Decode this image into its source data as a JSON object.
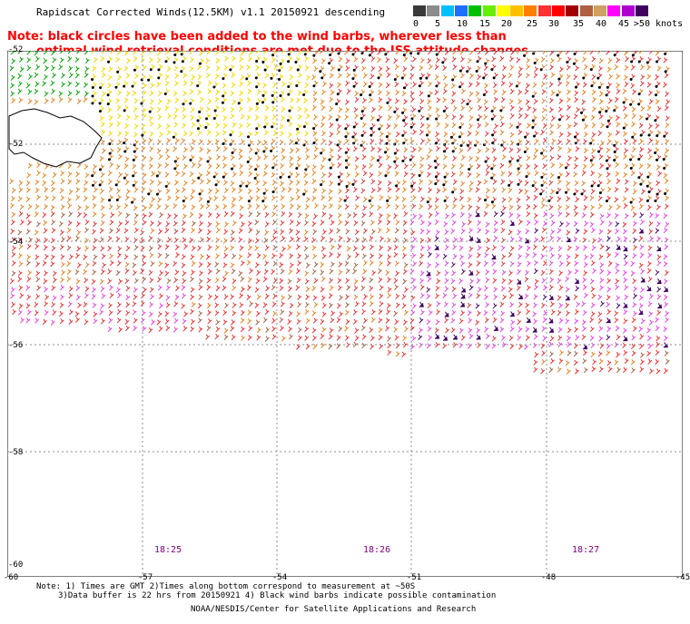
{
  "header": {
    "title": "Rapidscat Corrected Winds(12.5KM) v1.1 20150921 descending"
  },
  "legend": {
    "colors": [
      "#3a3a3a",
      "#8c8c8c",
      "#00bfff",
      "#1e6fff",
      "#00c000",
      "#66ee00",
      "#ffff00",
      "#ffc000",
      "#ff8000",
      "#ff3030",
      "#ff0000",
      "#a00000",
      "#b06040",
      "#d0a060",
      "#ff00ff",
      "#b000d0",
      "#400060"
    ],
    "labels": [
      "0",
      "5",
      "10",
      "15",
      "20",
      "25",
      "30",
      "35",
      "40",
      "45",
      ">50 knots"
    ]
  },
  "note": {
    "line1": "Note: black circles have been added to the wind barbs, wherever less than",
    "line2": "optimal wind retrieval conditions are met due to the ISS attitude changes."
  },
  "axes": {
    "x_labels": [
      "-60",
      "-57",
      "-54",
      "-51",
      "-48",
      "-45"
    ],
    "y_labels": [
      "-52",
      "-52",
      "-54",
      "-56",
      "-58",
      "-60"
    ]
  },
  "times": [
    "18:25",
    "18:26",
    "18:27"
  ],
  "footer": {
    "line1": "Note: 1) Times are GMT 2)Times along bottom correspond to measurement at ~50S",
    "line2": "3)Data buffer is 22 hrs from 20150921 4) Black wind barbs indicate possible contamination",
    "line3": "NOAA/NESDIS/Center for Satellite Applications and Research"
  },
  "map_colors": {
    "land": "#ffffff",
    "grid": "#8c8c8c",
    "barb_green": "#00a000",
    "barb_yellow": "#f0d800",
    "barb_orange": "#e08020",
    "barb_red": "#e03030",
    "barb_brown": "#a06040",
    "barb_magenta": "#e040e0",
    "barb_purple": "#400060"
  }
}
